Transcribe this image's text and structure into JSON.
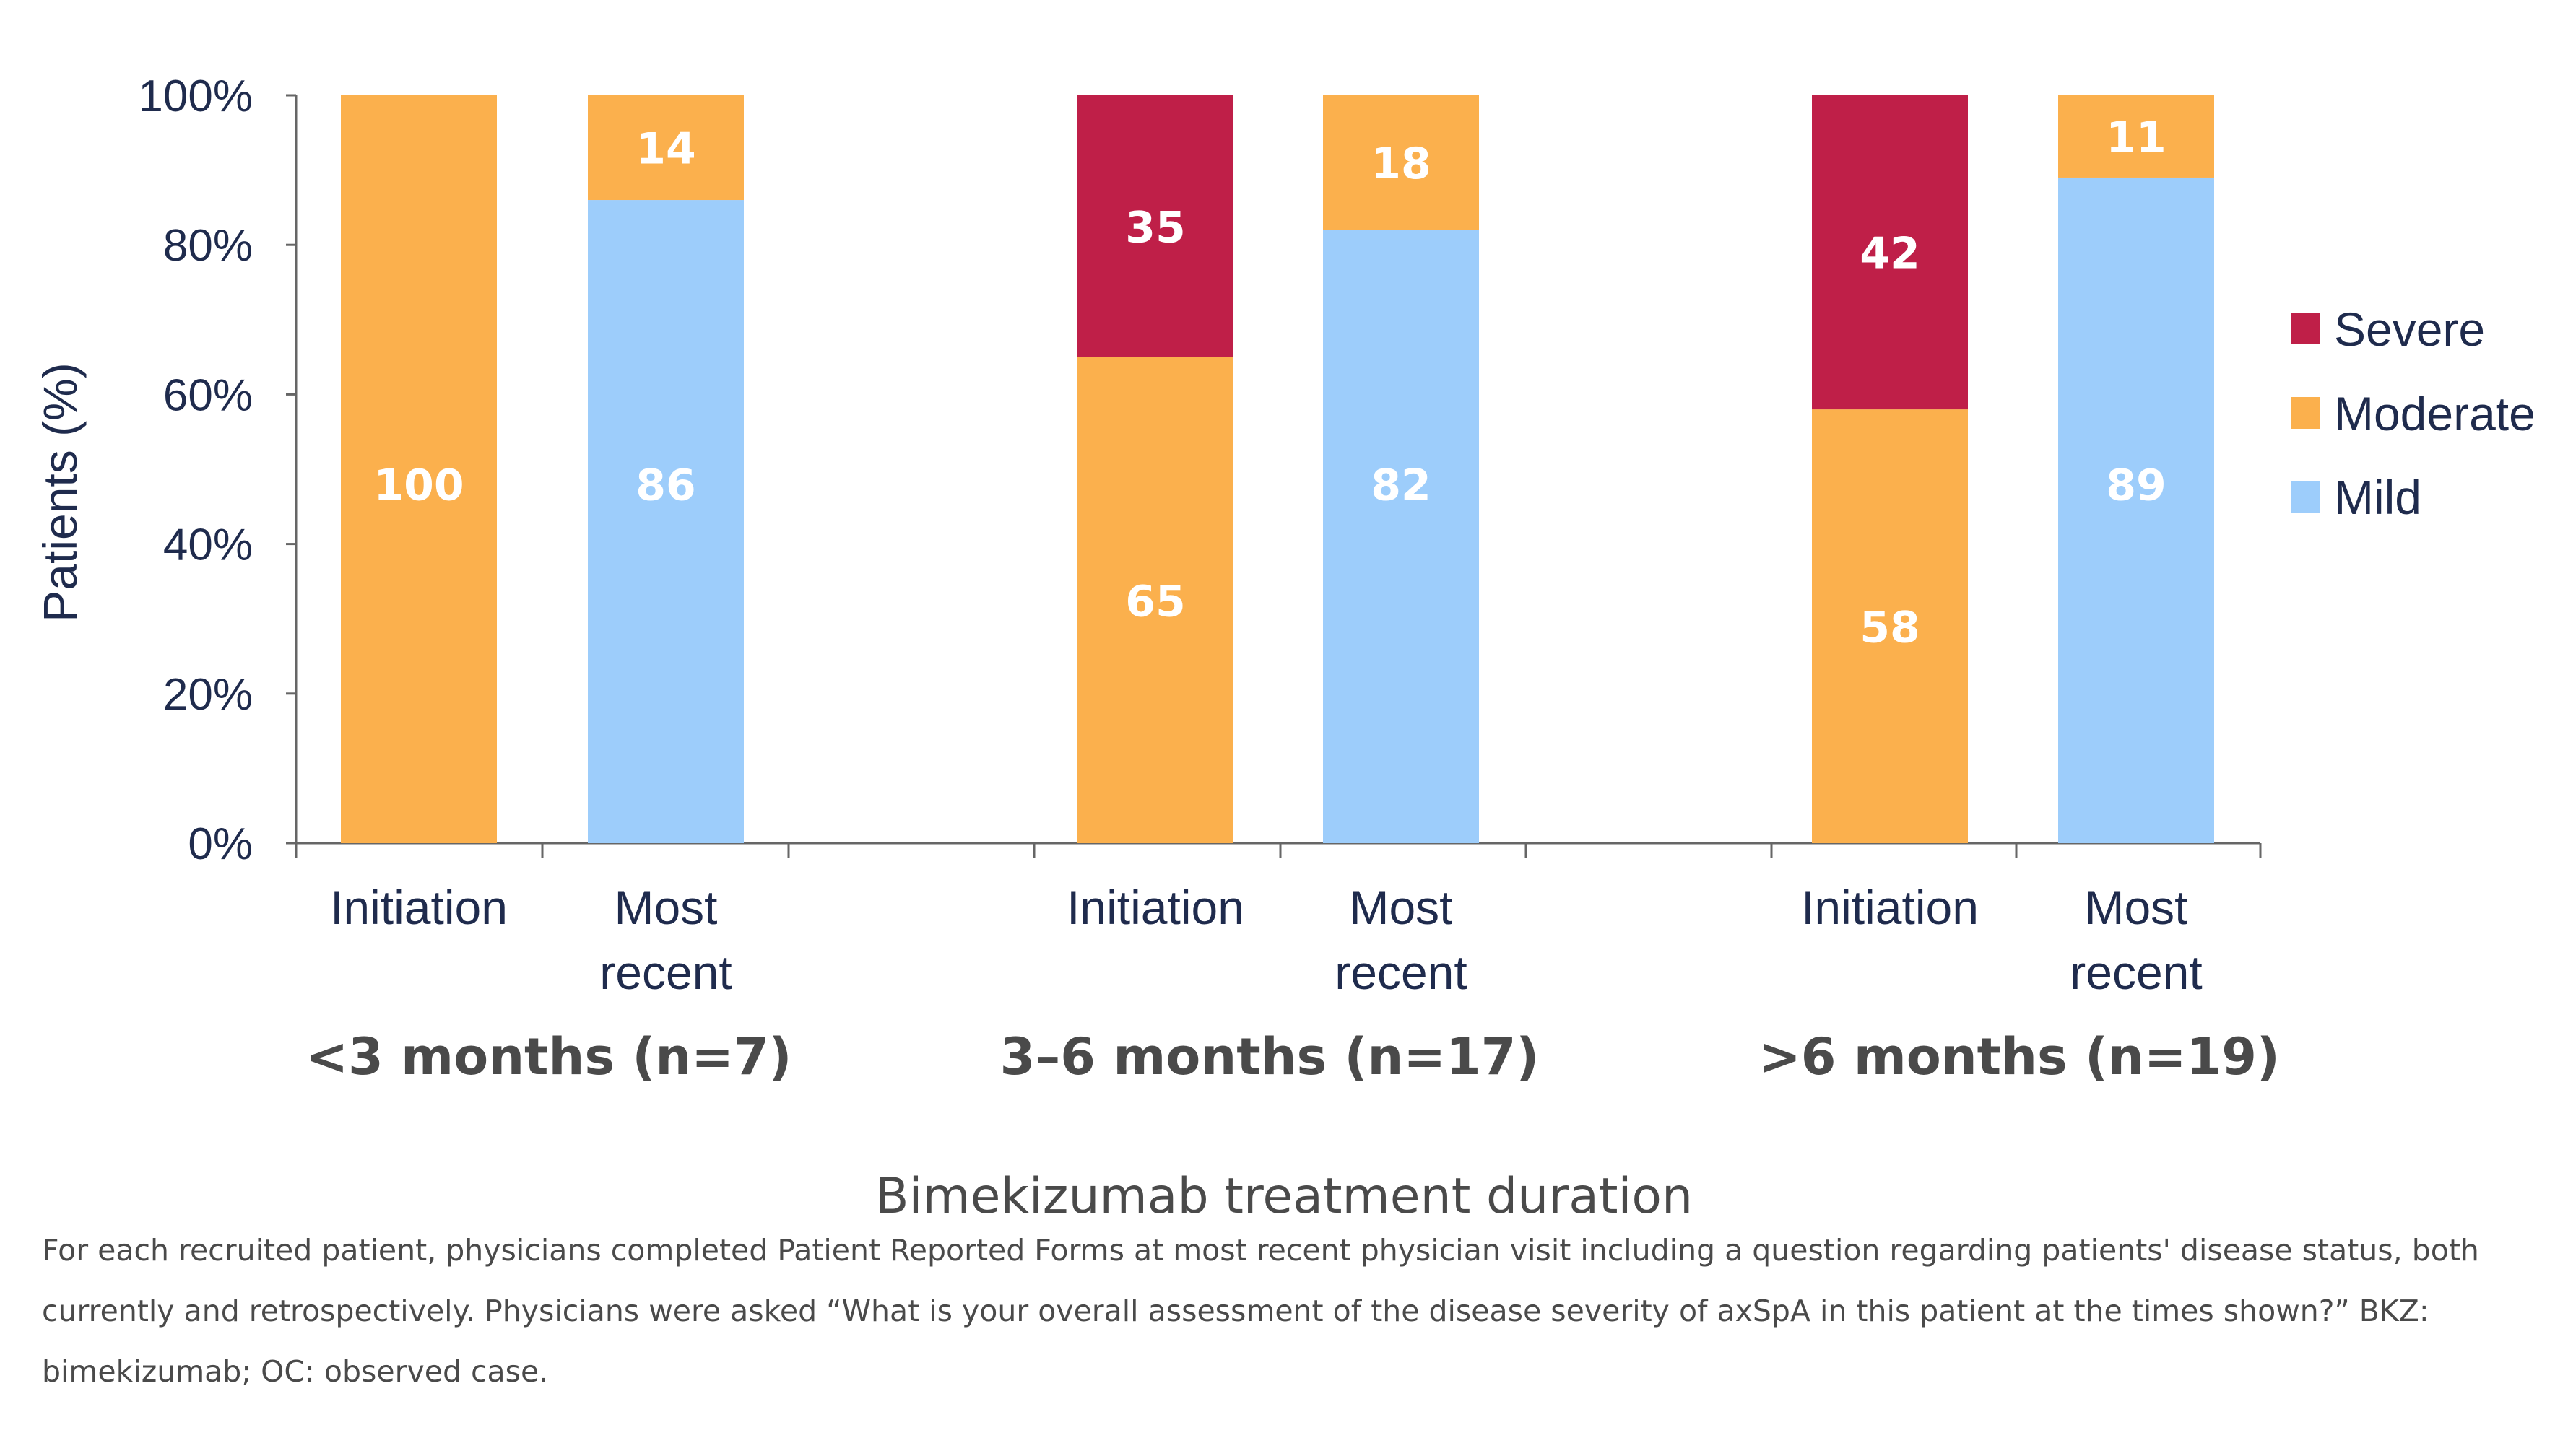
{
  "chart_data": {
    "type": "bar",
    "stacked": true,
    "ylabel": "Patients (%)",
    "xlabel": "Bimekizumab treatment duration",
    "ylim": [
      0,
      100
    ],
    "yticks": [
      "0%",
      "20%",
      "40%",
      "60%",
      "80%",
      "100%"
    ],
    "grid": false,
    "legend_position": "right",
    "legend": [
      "Severe",
      "Moderate",
      "Mild"
    ],
    "groups": [
      {
        "label": "<3 months (n=7)",
        "categories": [
          "Initiation",
          "Most recent"
        ]
      },
      {
        "label": "3–6 months (n=17)",
        "categories": [
          "Initiation",
          "Most recent"
        ]
      },
      {
        "label": ">6 months (n=19)",
        "categories": [
          "Initiation",
          "Most recent"
        ]
      }
    ],
    "categories": [
      "<3 months (n=7) · Initiation",
      "<3 months (n=7) · Most recent",
      "3–6 months (n=17) · Initiation",
      "3–6 months (n=17) · Most recent",
      ">6 months (n=19) · Initiation",
      ">6 months (n=19) · Most recent"
    ],
    "series": [
      {
        "name": "Mild",
        "color": "#9dcdfb",
        "values": [
          0,
          86,
          0,
          82,
          0,
          89
        ]
      },
      {
        "name": "Moderate",
        "color": "#fbb04d",
        "values": [
          100,
          14,
          65,
          18,
          58,
          11
        ]
      },
      {
        "name": "Severe",
        "color": "#bf1f48",
        "values": [
          0,
          0,
          35,
          0,
          42,
          0
        ]
      }
    ]
  },
  "footnote": "For each recruited patient, physicians completed Patient Reported Forms at most recent physician visit including a question regarding patients' disease status, both currently and retrospectively. Physicians were asked “What is your overall assessment of the disease severity of axSpA in this patient at the times shown?” BKZ: bimekizumab; OC: observed case."
}
